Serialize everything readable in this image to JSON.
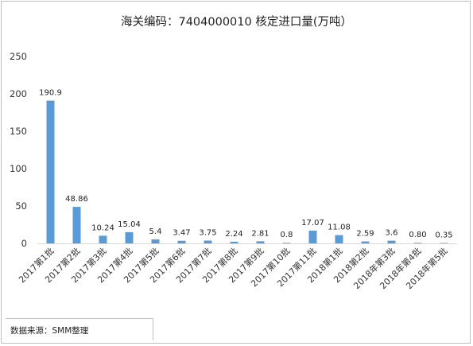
{
  "chart_data": {
    "type": "bar",
    "title": "海关编码：7404000010 核定进口量(万吨）",
    "categories": [
      "2017第1批",
      "2017第2批",
      "2017第3批",
      "2017第4批",
      "2017第5批",
      "2017第6批",
      "2017第7批",
      "2017第8批",
      "2017第9批",
      "2017第10批",
      "2017第11批",
      "2018第1批",
      "2018第2批",
      "2018年第3批",
      "2018年第4批",
      "2018年第5批"
    ],
    "values": [
      190.9,
      48.86,
      10.24,
      15.04,
      5.4,
      3.47,
      3.75,
      2.24,
      2.81,
      0.8,
      17.07,
      11.08,
      2.59,
      3.6,
      0.8,
      0.35
    ],
    "value_labels": [
      "190.9",
      "48.86",
      "10.24",
      "15.04",
      "5.4",
      "3.47",
      "3.75",
      "2.24",
      "2.81",
      "0.8",
      "17.07",
      "11.08",
      "2.59",
      "3.6",
      "0.80",
      "0.35"
    ],
    "yticks": [
      "0",
      "50",
      "100",
      "150",
      "200",
      "250"
    ],
    "ylim": [
      0,
      250
    ],
    "xlabel": "",
    "ylabel": "",
    "bar_color": "#5b9bd5",
    "grid": false,
    "legend": "none"
  },
  "source": {
    "text": "数据来源：SMM整理"
  }
}
